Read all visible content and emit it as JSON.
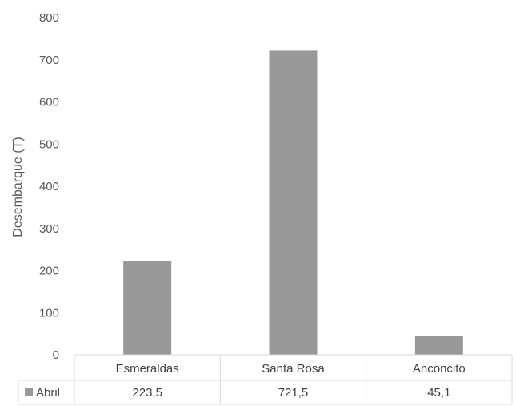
{
  "chart_data": {
    "type": "bar",
    "title": "",
    "ylabel": "Desembarque (T)",
    "xlabel": "",
    "ylim": [
      0,
      800
    ],
    "yticks": [
      0,
      100,
      200,
      300,
      400,
      500,
      600,
      700,
      800
    ],
    "categories": [
      "Esmeraldas",
      "Santa Rosa",
      "Anconcito"
    ],
    "series": [
      {
        "name": "Abril",
        "values": [
          223.5,
          721.5,
          45.1
        ],
        "value_labels": [
          "223,5",
          "721,5",
          "45,1"
        ],
        "color": "#999999"
      }
    ],
    "grid": false,
    "legend": "data-table"
  }
}
